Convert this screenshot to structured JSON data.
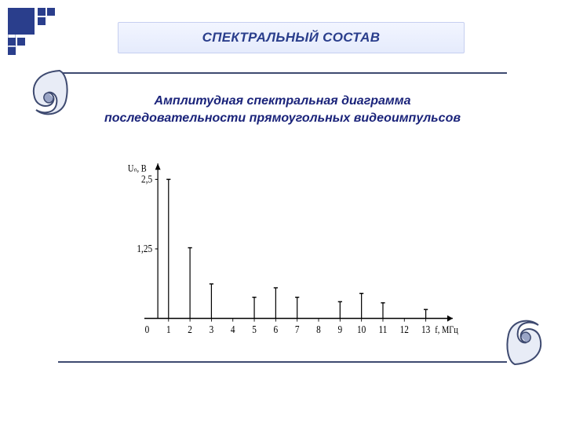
{
  "decor": {
    "accent_color": "#2a3e8c",
    "tiles": {
      "big_size": 34,
      "small_size": 10,
      "outline_color": "#b7bfdc"
    }
  },
  "title": {
    "text": "СПЕКТРАЛЬНЫЙ СОСТАВ",
    "text_color": "#2a3e8c",
    "bg_top": "#f2f5ff",
    "bg_bottom": "#e5ebfc",
    "border_color": "#c6cff0",
    "font_size_pt": 13,
    "font_weight": "bold",
    "font_style": "italic"
  },
  "subtitle": {
    "line1": "Амплитудная спектральная диаграмма",
    "line2": "последовательности прямоугольных видеоимпульсов",
    "color": "#1a237a",
    "font_size_pt": 12,
    "font_weight": "bold",
    "font_style": "italic"
  },
  "scroll": {
    "body_bg": "#ffffff",
    "edge_color": "#3e4a70",
    "curl_fill_light": "#e8ecf6",
    "curl_fill_shadow": "#9aa5c6"
  },
  "chart": {
    "type": "stem",
    "background_color": "#ffffff",
    "axis_color": "#000000",
    "line_color": "#000000",
    "line_width": 1.4,
    "marker": "tee",
    "marker_width": 6,
    "y_axis_label": "Uₙ, В",
    "x_axis_label": "f, МГц",
    "label_font": "Times New Roman",
    "label_fontsize": 12,
    "tick_fontsize": 13,
    "xlim": [
      0,
      14
    ],
    "ylim": [
      0,
      2.7
    ],
    "x_ticks": [
      0,
      1,
      2,
      3,
      4,
      5,
      6,
      7,
      8,
      9,
      10,
      11,
      12,
      13
    ],
    "x_tick_len": 4,
    "y_ticks": [
      {
        "value": 1.25,
        "label": "1,25"
      },
      {
        "value": 2.5,
        "label": "2,5"
      }
    ],
    "series": {
      "x": [
        1,
        2,
        3,
        4,
        5,
        6,
        7,
        8,
        9,
        10,
        11,
        12,
        13
      ],
      "height": [
        2.5,
        1.27,
        0.62,
        0.0,
        0.38,
        0.55,
        0.38,
        0.0,
        0.3,
        0.45,
        0.28,
        0.0,
        0.16
      ]
    }
  }
}
